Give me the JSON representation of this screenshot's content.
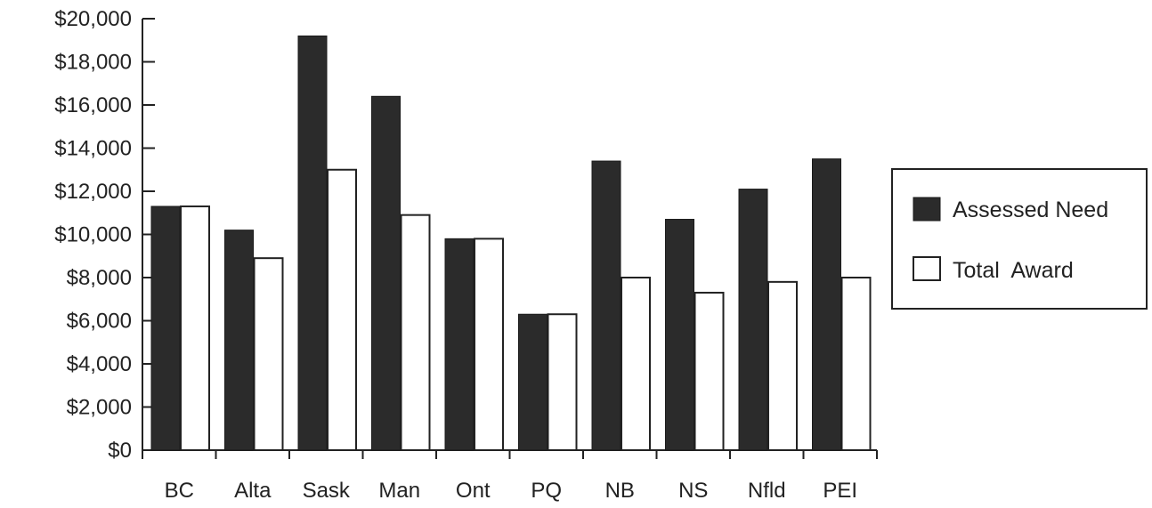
{
  "chart_data": {
    "type": "bar",
    "categories": [
      "BC",
      "Alta",
      "Sask",
      "Man",
      "Ont",
      "PQ",
      "NB",
      "NS",
      "Nfld",
      "PEI"
    ],
    "series": [
      {
        "name": "Assessed Need",
        "color": "#2b2b2b",
        "values": [
          11300,
          10200,
          19200,
          16400,
          9800,
          6300,
          13400,
          10700,
          12100,
          13500
        ]
      },
      {
        "name": "Total  Award",
        "color": "#ffffff",
        "values": [
          11300,
          8900,
          13000,
          10900,
          9800,
          6300,
          8000,
          7300,
          7800,
          8000
        ]
      }
    ],
    "ylim": [
      0,
      20000
    ],
    "yticks": [
      "$0",
      "$2,000",
      "$4,000",
      "$6,000",
      "$8,000",
      "$10,000",
      "$12,000",
      "$14,000",
      "$16,000",
      "$18,000",
      "$20,000"
    ],
    "ytick_values": [
      0,
      2000,
      4000,
      6000,
      8000,
      10000,
      12000,
      14000,
      16000,
      18000,
      20000
    ],
    "legend_position": "right",
    "grid": false
  }
}
